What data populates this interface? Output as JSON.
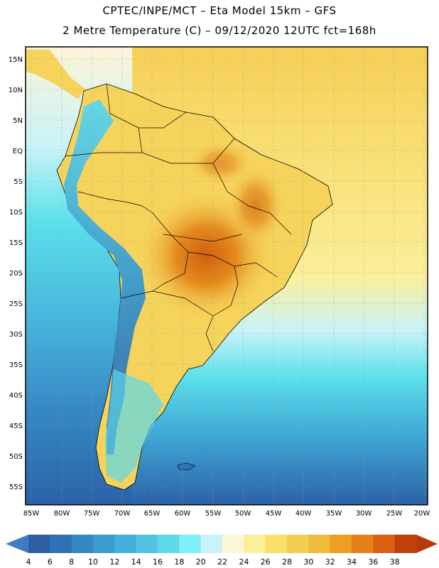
{
  "header": {
    "title_line1": "CPTEC/INPE/MCT –  Eta Model 15km – GFS",
    "title_line2": "2 Metre Temperature (C) – 09/12/2020 12UTC fct=168h"
  },
  "map": {
    "lat_labels": [
      "15N",
      "10N",
      "5N",
      "EQ",
      "5S",
      "10S",
      "15S",
      "20S",
      "25S",
      "30S",
      "35S",
      "40S",
      "45S",
      "50S",
      "55S"
    ],
    "lon_labels": [
      "85W",
      "80W",
      "75W",
      "70W",
      "65W",
      "60W",
      "55W",
      "50W",
      "45W",
      "40W",
      "35W",
      "30W",
      "25W",
      "20W"
    ],
    "colors": {
      "ocean_cold": "#2b62a7",
      "ocean_mid": "#3fb3d4",
      "ocean_warm": "#5ce1ea",
      "land_warm": "#f8d45a",
      "land_hot": "#e48a1c",
      "andes": "#3a84c4"
    }
  },
  "colorbar": {
    "values": [
      "4",
      "6",
      "8",
      "10",
      "12",
      "14",
      "16",
      "18",
      "20",
      "22",
      "24",
      "26",
      "28",
      "30",
      "32",
      "34",
      "36",
      "38"
    ],
    "colors": [
      "#2e5fa3",
      "#2f72b4",
      "#3587c2",
      "#3a9bcf",
      "#45b0db",
      "#52c3e3",
      "#5dd8eb",
      "#7ef0f6",
      "#c9f3f9",
      "#fdf6d9",
      "#fbf09a",
      "#f8e06a",
      "#f3ce55",
      "#eebc3d",
      "#ec9f20",
      "#e7801a",
      "#d95f13",
      "#c0400b"
    ],
    "left_arrow_color": "#3f7cc4",
    "right_arrow_color": "#b83a0a"
  }
}
